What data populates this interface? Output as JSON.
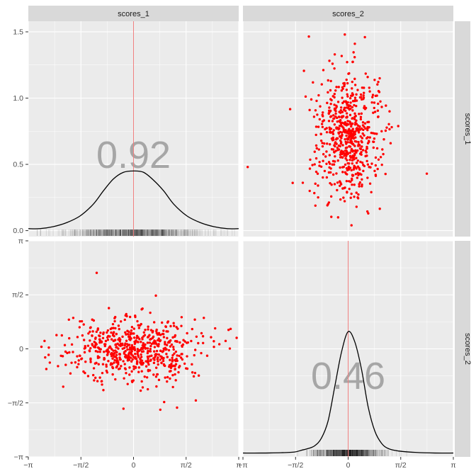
{
  "chart_data": {
    "type": "scatter",
    "layout": "pairs-matrix",
    "variables": [
      "scores_1",
      "scores_2"
    ],
    "colors": {
      "points": "#ff0000",
      "density": "#000000",
      "mean_line": "#f08080",
      "panel_bg": "#ebebeb",
      "strip_bg": "#d9d9d9",
      "corr_text": "#9a9a9a"
    },
    "ticks": {
      "scores_1_density": [
        {
          "v": 0.0,
          "label": "0.0"
        },
        {
          "v": 0.5,
          "label": "0.5"
        },
        {
          "v": 1.0,
          "label": "1.0"
        },
        {
          "v": 1.5,
          "label": "1.5"
        }
      ],
      "pi_axis": [
        {
          "v": -3.14159,
          "label": "−π"
        },
        {
          "v": -1.5708,
          "label": "−π/2"
        },
        {
          "v": 0,
          "label": "0"
        },
        {
          "v": 1.5708,
          "label": "π/2"
        },
        {
          "v": 3.14159,
          "label": "π"
        }
      ]
    },
    "panels": [
      {
        "id": "scores_1-density",
        "row": 0,
        "col": 0,
        "kind": "density",
        "variable": "scores_1",
        "xlim": [
          -3.14159,
          3.14159
        ],
        "ylim": [
          -0.045,
          1.58
        ],
        "mean": 0,
        "corr_label": "0.92",
        "corr_pos": [
          0,
          0.58
        ],
        "curve": [
          [
            -3.14,
            0.015
          ],
          [
            -2.8,
            0.015
          ],
          [
            -2.4,
            0.03
          ],
          [
            -2.0,
            0.06
          ],
          [
            -1.6,
            0.11
          ],
          [
            -1.2,
            0.2
          ],
          [
            -0.9,
            0.3
          ],
          [
            -0.6,
            0.39
          ],
          [
            -0.3,
            0.44
          ],
          [
            0.0,
            0.45
          ],
          [
            0.3,
            0.44
          ],
          [
            0.6,
            0.38
          ],
          [
            0.9,
            0.3
          ],
          [
            1.2,
            0.2
          ],
          [
            1.6,
            0.11
          ],
          [
            2.0,
            0.06
          ],
          [
            2.4,
            0.03
          ],
          [
            2.8,
            0.015
          ],
          [
            3.14,
            0.015
          ]
        ]
      },
      {
        "id": "scores_1-vs-scores_2",
        "row": 0,
        "col": 1,
        "kind": "scatter",
        "x": "scores_2",
        "y": "scores_1",
        "xlim": [
          -3.14159,
          3.14159
        ],
        "ylim": [
          -0.045,
          1.58
        ],
        "points": [
          [
            0.35,
            0.43
          ],
          [
            -1.0,
            0.5
          ],
          [
            -3.0,
            0.48
          ],
          [
            2.35,
            0.43
          ],
          [
            -1.1,
            0.99
          ],
          [
            -0.4,
            1.33
          ],
          [
            0.5,
            1.46
          ],
          [
            -0.1,
            1.48
          ],
          [
            0.2,
            1.41
          ],
          [
            -0.6,
            0.2
          ],
          [
            0.6,
            0.13
          ],
          [
            0.1,
            0.04
          ],
          [
            -0.3,
            0.1
          ],
          [
            0.25,
            0.18
          ],
          [
            -1.15,
            0.91
          ],
          [
            -0.9,
            0.34
          ],
          [
            0.9,
            0.86
          ],
          [
            1.0,
            0.75
          ],
          [
            -0.85,
            0.84
          ],
          [
            -0.7,
            0.45
          ]
        ],
        "cloud": {
          "n": 620,
          "mean_x": 0,
          "mean_y": 0.72,
          "sd_x": 0.5,
          "sd_y": 0.23
        }
      },
      {
        "id": "scores_2-vs-scores_1",
        "row": 1,
        "col": 0,
        "kind": "scatter",
        "x": "scores_1",
        "y": "scores_2",
        "xlim": [
          -3.14159,
          3.14159
        ],
        "ylim": [
          -3.14159,
          3.14159
        ],
        "points": [
          [
            -2.75,
            0.06
          ],
          [
            -1.1,
            2.21
          ],
          [
            0.8,
            -1.77
          ],
          [
            -0.3,
            -1.74
          ],
          [
            1.3,
            -1.71
          ],
          [
            2.9,
            0.58
          ],
          [
            2.75,
            0.23
          ],
          [
            3.08,
            0.32
          ],
          [
            -2.5,
            -0.4
          ],
          [
            -2.1,
            -1.1
          ],
          [
            -2.3,
            0.4
          ],
          [
            2.1,
            0.9
          ],
          [
            2.2,
            -0.2
          ],
          [
            -1.6,
            0.8
          ],
          [
            1.8,
            -0.8
          ],
          [
            0.5,
            1.05
          ],
          [
            -0.2,
            0.95
          ],
          [
            -0.9,
            -1.2
          ],
          [
            1.0,
            -0.95
          ],
          [
            -1.8,
            0.9
          ]
        ],
        "cloud": {
          "n": 620,
          "mean_x": 0,
          "mean_y": 0,
          "sd_x": 0.95,
          "sd_y": 0.45
        }
      },
      {
        "id": "scores_2-density",
        "row": 1,
        "col": 1,
        "kind": "density",
        "variable": "scores_2",
        "xlim": [
          -3.14159,
          3.14159
        ],
        "ylim": [
          -3.14159,
          3.14159
        ],
        "mean": 0,
        "corr_label": "0.46",
        "corr_pos": [
          0,
          -0.75
        ],
        "curve": [
          [
            -3.14,
            -3.03
          ],
          [
            -2.6,
            -3.03
          ],
          [
            -2.0,
            -3.02
          ],
          [
            -1.6,
            -3.0
          ],
          [
            -1.4,
            -2.95
          ],
          [
            -1.2,
            -2.9
          ],
          [
            -1.0,
            -2.82
          ],
          [
            -0.8,
            -2.6
          ],
          [
            -0.6,
            -2.1
          ],
          [
            -0.4,
            -1.1
          ],
          [
            -0.2,
            -0.1
          ],
          [
            0.0,
            0.5
          ],
          [
            0.2,
            0.2
          ],
          [
            0.4,
            -0.6
          ],
          [
            0.6,
            -1.7
          ],
          [
            0.8,
            -2.4
          ],
          [
            1.0,
            -2.75
          ],
          [
            1.2,
            -2.9
          ],
          [
            1.5,
            -2.97
          ],
          [
            2.0,
            -3.01
          ],
          [
            2.6,
            -3.03
          ],
          [
            3.14,
            -3.03
          ]
        ]
      }
    ]
  }
}
